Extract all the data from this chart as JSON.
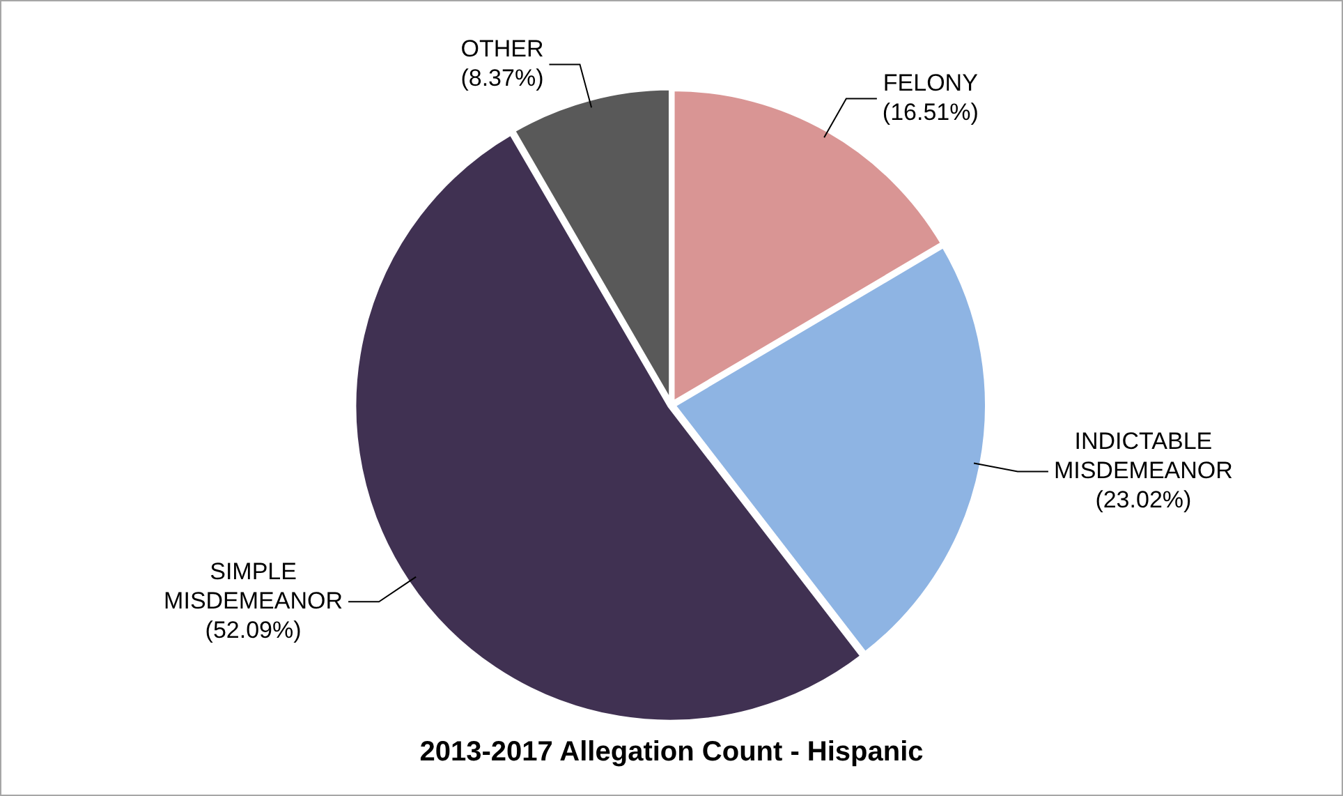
{
  "chart_data": {
    "type": "pie",
    "title": "2013-2017 Allegation Count - Hispanic",
    "categories": [
      "FELONY",
      "INDICTABLE MISDEMEANOR",
      "SIMPLE MISDEMEANOR",
      "OTHER"
    ],
    "values": [
      16.51,
      23.02,
      52.09,
      8.37
    ],
    "value_labels": [
      "(16.51%)",
      "(23.02%)",
      "(52.09%)",
      "(8.37%)"
    ],
    "colors": [
      "#d99594",
      "#8eb4e3",
      "#403152",
      "#595959"
    ],
    "legend": false
  }
}
